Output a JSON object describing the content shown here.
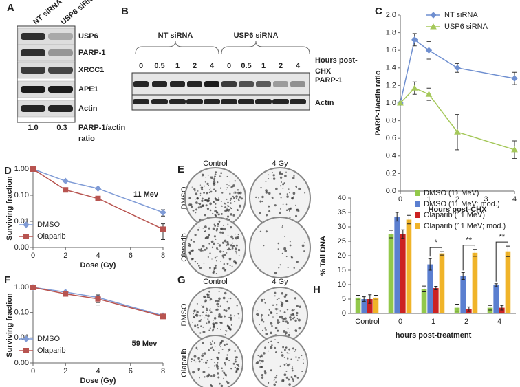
{
  "chart_data": [
    {
      "type": "line",
      "panel": "C",
      "x": [
        0,
        0.5,
        1,
        2,
        4
      ],
      "xlim": [
        0,
        4
      ],
      "xticks": [
        0,
        1,
        2,
        3,
        4
      ],
      "ylim": [
        0,
        2
      ],
      "yticks": [
        {
          "value": 0,
          "label": "0.0"
        },
        0.2,
        0.4,
        0.6,
        0.8,
        {
          "value": 1,
          "label": "1.0"
        },
        1.2,
        1.4,
        1.6,
        1.8,
        {
          "value": 2,
          "label": "2.0"
        }
      ],
      "xlabel": "Hours post-CHX",
      "ylabel": "PARP-1/actin ratio",
      "legend": "top-right",
      "log_y": false,
      "series": [
        {
          "name": "NT siRNA",
          "color": "#6f8fd0",
          "marker": "diamond",
          "values": [
            1.0,
            1.72,
            1.6,
            1.4,
            1.28
          ],
          "errors": [
            0,
            0.07,
            0.1,
            0.05,
            0.07
          ]
        },
        {
          "name": "USP6 siRNA",
          "color": "#a5c85a",
          "marker": "triangle",
          "values": [
            1.0,
            1.17,
            1.1,
            0.67,
            0.47
          ],
          "errors": [
            0,
            0.07,
            0.07,
            0.2,
            0.1
          ]
        }
      ],
      "annotations": [
        "*",
        "*",
        "*",
        "**"
      ]
    },
    {
      "type": "line",
      "panel": "D",
      "x": [
        0,
        2,
        4,
        8
      ],
      "xlim": [
        0,
        8
      ],
      "xticks": [
        0,
        2,
        4,
        6,
        8
      ],
      "ylim": [
        0.001,
        1
      ],
      "log_y": true,
      "yticks": [
        {
          "value": 0.001,
          "label": "0.00"
        },
        0.01,
        {
          "value": 0.1,
          "label": "0.10"
        },
        {
          "value": 1,
          "label": "1.00"
        }
      ],
      "xlabel": "Dose (Gy)",
      "ylabel": "Surviving fraction",
      "legend": "bottom-left",
      "series": [
        {
          "name": "DMSO",
          "color": "#7f9bd6",
          "marker": "diamond",
          "values": [
            1,
            0.35,
            0.18,
            0.022
          ],
          "errors": [
            0,
            0.02,
            0.02,
            0.006
          ]
        },
        {
          "name": "Olaparib",
          "color": "#b85450",
          "marker": "square",
          "values": [
            1,
            0.16,
            0.075,
            0.005
          ],
          "errors": [
            0,
            0.01,
            0.015,
            0.003
          ]
        }
      ],
      "annotations": [
        "11 Mev"
      ]
    },
    {
      "type": "line",
      "panel": "F",
      "x": [
        0,
        2,
        4,
        8
      ],
      "xlim": [
        0,
        8
      ],
      "xticks": [
        0,
        2,
        4,
        6,
        8
      ],
      "ylim": [
        0.001,
        1
      ],
      "log_y": true,
      "yticks": [
        {
          "value": 0.001,
          "label": "0.00"
        },
        0.01,
        {
          "value": 0.1,
          "label": "0.10"
        },
        {
          "value": 1,
          "label": "1.00"
        }
      ],
      "xlabel": "Dose (Gy)",
      "ylabel": "Surviving fraction",
      "legend": "bottom-left",
      "series": [
        {
          "name": "DMSO",
          "color": "#7f9bd6",
          "marker": "diamond",
          "values": [
            1,
            0.65,
            0.4,
            0.075
          ],
          "errors": [
            0,
            0.05,
            0.15,
            0.01
          ]
        },
        {
          "name": "Olaparib",
          "color": "#b85450",
          "marker": "square",
          "values": [
            1,
            0.55,
            0.35,
            0.07
          ],
          "errors": [
            0,
            0.05,
            0.15,
            0.01
          ]
        }
      ],
      "annotations": [
        "59 Mev"
      ]
    },
    {
      "type": "bar",
      "panel": "H",
      "categories": [
        "Control",
        "0",
        "1",
        "2",
        "4"
      ],
      "ylim": [
        0,
        40
      ],
      "yticks": [
        0,
        5,
        10,
        15,
        20,
        25,
        30,
        35,
        40
      ],
      "xlabel": "hours post-treatment",
      "ylabel": "% Tail DNA",
      "legend": "top",
      "series": [
        {
          "name": "DMSO (11 MeV)",
          "color": "#92c84a",
          "values": [
            5.5,
            27.5,
            8.5,
            2,
            2
          ],
          "errors": [
            0.8,
            1.3,
            1,
            1.2,
            0.8
          ]
        },
        {
          "name": "DMSO (11 MeV; mod.)",
          "color": "#5b7fd0",
          "values": [
            5,
            33.5,
            17,
            13,
            9.8
          ],
          "errors": [
            0.8,
            1.5,
            2,
            1.2,
            0.5
          ]
        },
        {
          "name": "Olaparib (11 MeV)",
          "color": "#cc2222",
          "values": [
            5,
            27.5,
            8.8,
            1.5,
            2
          ],
          "errors": [
            1.5,
            1.5,
            0.6,
            0.8,
            0.8
          ]
        },
        {
          "name": "Olaparib (11 MeV; mod.)",
          "color": "#f0b429",
          "values": [
            5.5,
            32.5,
            20.8,
            21,
            21.5
          ],
          "errors": [
            0.8,
            1.5,
            0.6,
            1.2,
            1.8
          ]
        }
      ],
      "annotations": [
        "*",
        "**",
        "**"
      ]
    }
  ],
  "blot_a": {
    "panel": "A",
    "columns": [
      "NT siRNA",
      "USP6 siRNA"
    ],
    "rows": [
      "USP6",
      "PARP-1",
      "XRCC1",
      "APE1",
      "Actin"
    ],
    "ratios": [
      "1.0",
      "0.3"
    ],
    "ratio_label": [
      "PARP-1/actin",
      "ratio"
    ]
  },
  "blot_b": {
    "panel": "B",
    "groups": [
      "NT siRNA",
      "USP6 siRNA"
    ],
    "lanes": [
      "0",
      "0.5",
      "1",
      "2",
      "4",
      "0",
      "0.5",
      "1",
      "2",
      "4"
    ],
    "lane_label": [
      "Hours post-",
      "CHX"
    ],
    "rows": [
      "PARP-1",
      "Actin"
    ]
  },
  "images_e": {
    "panel": "E",
    "columns": [
      "Control",
      "4 Gy"
    ],
    "rows": [
      "DMSO",
      "Olaparib"
    ]
  },
  "images_g": {
    "panel": "G",
    "columns": [
      "Control",
      "4 Gy"
    ],
    "rows": [
      "DMSO",
      "Olaparib"
    ]
  }
}
